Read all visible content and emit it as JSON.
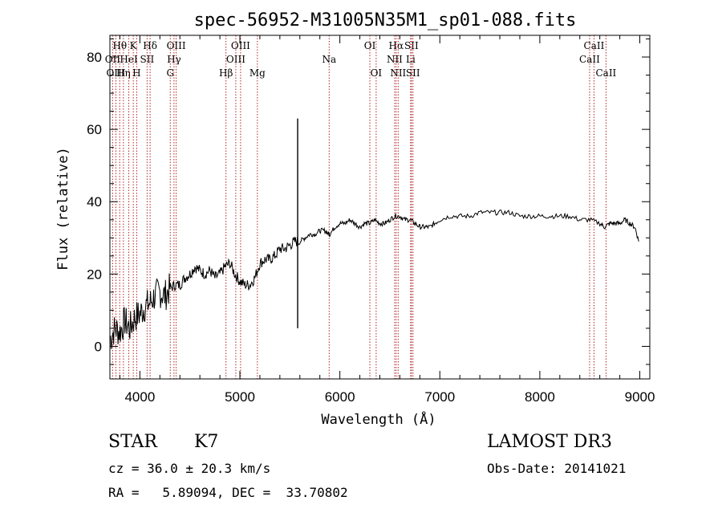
{
  "chart_data": {
    "type": "line",
    "title": "spec-56952-M31005N35M1_sp01-088.fits",
    "xlabel": "Wavelength (Å)",
    "ylabel": "Flux (relative)",
    "xlim": [
      3700,
      9100
    ],
    "ylim": [
      -9,
      86
    ],
    "xticks": [
      4000,
      5000,
      6000,
      7000,
      8000,
      9000
    ],
    "yticks": [
      0,
      20,
      40,
      60,
      80
    ],
    "grid": false,
    "series": [
      {
        "name": "flux",
        "x": [
          3700,
          3750,
          3800,
          3850,
          3900,
          3950,
          4000,
          4050,
          4100,
          4150,
          4200,
          4250,
          4300,
          4350,
          4400,
          4450,
          4500,
          4550,
          4600,
          4650,
          4700,
          4750,
          4800,
          4850,
          4900,
          4950,
          5000,
          5050,
          5100,
          5150,
          5200,
          5250,
          5300,
          5350,
          5400,
          5450,
          5500,
          5550,
          5600,
          5650,
          5700,
          5750,
          5800,
          5850,
          5890,
          5900,
          5950,
          6000,
          6050,
          6100,
          6150,
          6200,
          6250,
          6300,
          6350,
          6400,
          6450,
          6500,
          6550,
          6600,
          6650,
          6700,
          6750,
          6800,
          6850,
          6900,
          6950,
          7000,
          7100,
          7200,
          7300,
          7400,
          7500,
          7600,
          7700,
          7800,
          7900,
          8000,
          8100,
          8200,
          8300,
          8400,
          8500,
          8600,
          8650,
          8700,
          8750,
          8800,
          8850,
          8900,
          8950,
          8990
        ],
        "y": [
          2,
          5,
          4,
          7,
          5,
          8,
          9,
          11,
          12,
          14,
          15,
          14,
          16,
          17,
          17,
          19,
          20,
          22,
          21,
          20,
          21,
          19,
          20,
          22,
          23,
          20,
          18,
          17,
          17,
          19,
          23,
          24,
          24,
          25,
          27,
          27,
          28,
          29,
          29,
          30,
          31,
          31,
          32,
          32,
          31,
          31,
          33,
          34,
          34,
          35,
          34,
          33,
          34,
          34,
          35,
          34,
          34,
          35,
          36,
          36,
          35,
          35,
          34,
          33,
          33,
          33,
          34,
          35,
          36,
          36,
          36,
          37,
          37,
          37,
          37,
          36,
          36,
          36,
          36,
          36,
          36,
          35,
          35,
          34,
          33,
          34,
          34,
          34,
          35,
          34,
          33,
          29
        ]
      }
    ],
    "spikes": [
      {
        "x": 5578,
        "y": 63
      },
      {
        "x": 5578,
        "y": 5
      }
    ],
    "lines": [
      {
        "label": "Hθ",
        "x": 3798,
        "row": 0
      },
      {
        "label": "OII",
        "x": 3727,
        "row": 1
      },
      {
        "label": "OIII",
        "x": 3760,
        "row": 2
      },
      {
        "label": "Hη",
        "x": 3835,
        "row": 2
      },
      {
        "label": "HeI",
        "x": 3889,
        "row": 1
      },
      {
        "label": "K",
        "x": 3934,
        "row": 0
      },
      {
        "label": "SII",
        "x": 4072,
        "row": 1
      },
      {
        "label": "H",
        "x": 3968,
        "row": 2
      },
      {
        "label": "Hδ",
        "x": 4102,
        "row": 0
      },
      {
        "label": "OIII",
        "x": 4363,
        "row": 0
      },
      {
        "label": "Hγ",
        "x": 4341,
        "row": 1
      },
      {
        "label": "G",
        "x": 4304,
        "row": 2
      },
      {
        "label": "OIII",
        "x": 5007,
        "row": 0
      },
      {
        "label": "OIII",
        "x": 4959,
        "row": 1
      },
      {
        "label": "Hβ",
        "x": 4861,
        "row": 2
      },
      {
        "label": "Mg",
        "x": 5175,
        "row": 2
      },
      {
        "label": "Na",
        "x": 5893,
        "row": 1
      },
      {
        "label": "OI",
        "x": 6300,
        "row": 0
      },
      {
        "label": "OI",
        "x": 6363,
        "row": 2
      },
      {
        "label": "Hα",
        "x": 6563,
        "row": 0
      },
      {
        "label": "NII",
        "x": 6548,
        "row": 1
      },
      {
        "label": "NII",
        "x": 6583,
        "row": 2
      },
      {
        "label": "SII",
        "x": 6716,
        "row": 0
      },
      {
        "label": "Li",
        "x": 6708,
        "row": 1
      },
      {
        "label": "SII",
        "x": 6731,
        "row": 2
      },
      {
        "label": "CaII",
        "x": 8542,
        "row": 0
      },
      {
        "label": "CaII",
        "x": 8498,
        "row": 1
      },
      {
        "label": "CaII",
        "x": 8662,
        "row": 2
      }
    ]
  },
  "info": {
    "class": "STAR",
    "subclass": "K7",
    "survey": "LAMOST DR3",
    "cz": "cz = 36.0 ± 20.3 km/s",
    "obs_date": "Obs-Date: 20141021",
    "radec": "RA =   5.89094, DEC =  33.70802"
  },
  "colors": {
    "axis": "#000000",
    "spectrum": "#000000",
    "line_marker": "#b22222"
  }
}
